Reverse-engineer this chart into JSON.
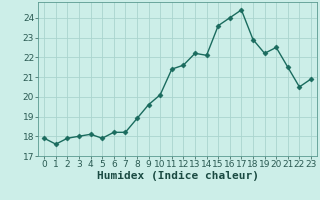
{
  "xlabel": "Humidex (Indice chaleur)",
  "x": [
    0,
    1,
    2,
    3,
    4,
    5,
    6,
    7,
    8,
    9,
    10,
    11,
    12,
    13,
    14,
    15,
    16,
    17,
    18,
    19,
    20,
    21,
    22,
    23
  ],
  "y": [
    17.9,
    17.6,
    17.9,
    18.0,
    18.1,
    17.9,
    18.2,
    18.2,
    18.9,
    19.6,
    20.1,
    21.4,
    21.6,
    22.2,
    22.1,
    23.6,
    24.0,
    24.4,
    22.9,
    22.2,
    22.5,
    21.5,
    20.5,
    20.9
  ],
  "line_color": "#1a6b5e",
  "marker": "D",
  "marker_size": 2.5,
  "bg_color": "#cceee8",
  "grid_color": "#aad4ce",
  "ylim": [
    17,
    24.8
  ],
  "yticks": [
    17,
    18,
    19,
    20,
    21,
    22,
    23,
    24
  ],
  "xlim": [
    -0.5,
    23.5
  ],
  "xticks": [
    0,
    1,
    2,
    3,
    4,
    5,
    6,
    7,
    8,
    9,
    10,
    11,
    12,
    13,
    14,
    15,
    16,
    17,
    18,
    19,
    20,
    21,
    22,
    23
  ],
  "tick_fontsize": 6.5,
  "xlabel_fontsize": 8,
  "line_width": 1.0,
  "spine_color": "#5a9a90"
}
